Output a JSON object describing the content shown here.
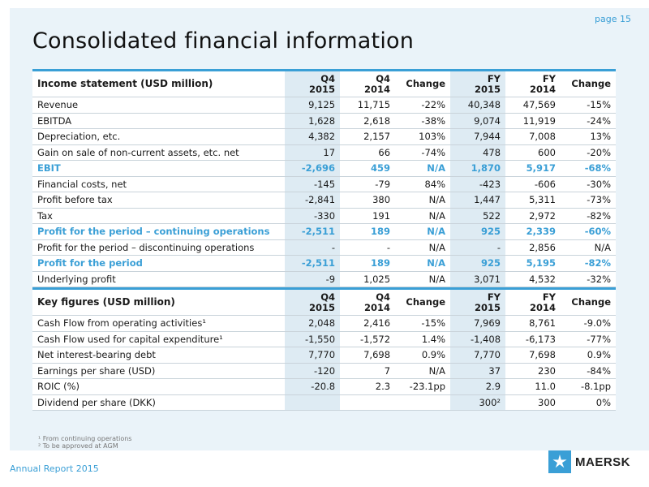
{
  "page_number": "page 15",
  "title": "Consolidated financial information",
  "columns": {
    "q4_2015": [
      "Q4",
      "2015"
    ],
    "q4_2014": [
      "Q4",
      "2014"
    ],
    "change": "Change",
    "fy_2015": [
      "FY",
      "2015"
    ],
    "fy_2014": [
      "FY",
      "2014"
    ],
    "change2": "Change"
  },
  "income": {
    "header": "Income statement (USD million)",
    "rows": [
      {
        "label": "Revenue",
        "v": [
          "9,125",
          "11,715",
          "-22%",
          "40,348",
          "47,569",
          "-15%"
        ],
        "hl": false
      },
      {
        "label": "EBITDA",
        "v": [
          "1,628",
          "2,618",
          "-38%",
          "9,074",
          "11,919",
          "-24%"
        ],
        "hl": false
      },
      {
        "label": "Depreciation, etc.",
        "v": [
          "4,382",
          "2,157",
          "103%",
          "7,944",
          "7,008",
          "13%"
        ],
        "hl": false
      },
      {
        "label": "Gain on sale of non-current assets, etc. net",
        "v": [
          "17",
          "66",
          "-74%",
          "478",
          "600",
          "-20%"
        ],
        "hl": false
      },
      {
        "label": "EBIT",
        "v": [
          "-2,696",
          "459",
          "N/A",
          "1,870",
          "5,917",
          "-68%"
        ],
        "hl": true
      },
      {
        "label": "Financial costs, net",
        "v": [
          "-145",
          "-79",
          "84%",
          "-423",
          "-606",
          "-30%"
        ],
        "hl": false
      },
      {
        "label": "Profit before tax",
        "v": [
          "-2,841",
          "380",
          "N/A",
          "1,447",
          "5,311",
          "-73%"
        ],
        "hl": false
      },
      {
        "label": "Tax",
        "v": [
          "-330",
          "191",
          "N/A",
          "522",
          "2,972",
          "-82%"
        ],
        "hl": false
      },
      {
        "label": "Profit for the period – continuing operations",
        "v": [
          "-2,511",
          "189",
          "N/A",
          "925",
          "2,339",
          "-60%"
        ],
        "hl": true
      },
      {
        "label": "Profit for the period – discontinuing operations",
        "v": [
          "-",
          "-",
          "N/A",
          "-",
          "2,856",
          "N/A"
        ],
        "hl": false
      },
      {
        "label": "Profit for the period",
        "v": [
          "-2,511",
          "189",
          "N/A",
          "925",
          "5,195",
          "-82%"
        ],
        "hl": true
      },
      {
        "label": "Underlying profit",
        "v": [
          "-9",
          "1,025",
          "N/A",
          "3,071",
          "4,532",
          "-32%"
        ],
        "hl": false
      }
    ]
  },
  "keyfigures": {
    "header": "Key figures (USD million)",
    "rows": [
      {
        "label": "Cash Flow from operating activities¹",
        "v": [
          "2,048",
          "2,416",
          "-15%",
          "7,969",
          "8,761",
          "-9.0%"
        ],
        "hl": false
      },
      {
        "label": "Cash Flow used for capital expenditure¹",
        "v": [
          "-1,550",
          "-1,572",
          "1.4%",
          "-1,408",
          "-6,173",
          "-77%"
        ],
        "hl": false
      },
      {
        "label": "Net interest-bearing debt",
        "v": [
          "7,770",
          "7,698",
          "0.9%",
          "7,770",
          "7,698",
          "0.9%"
        ],
        "hl": false
      },
      {
        "label": "Earnings per share (USD)",
        "v": [
          "-120",
          "7",
          "N/A",
          "37",
          "230",
          "-84%"
        ],
        "hl": false
      },
      {
        "label": "ROIC (%)",
        "v": [
          "-20.8",
          "2.3",
          "-23.1pp",
          "2.9",
          "11.0",
          "-8.1pp"
        ],
        "hl": false
      },
      {
        "label": "Dividend per share (DKK)",
        "v": [
          "",
          "",
          "",
          "300²",
          "300",
          "0%"
        ],
        "hl": false
      }
    ]
  },
  "footnotes": [
    "¹ From continuing operations",
    "² To be approved at AGM"
  ],
  "footer": "Annual Report 2015",
  "logo_text": "MAERSK",
  "colors": {
    "accent": "#3a9fd6",
    "panel": "#eaf3f9",
    "shaded_col": "#deebf3"
  }
}
